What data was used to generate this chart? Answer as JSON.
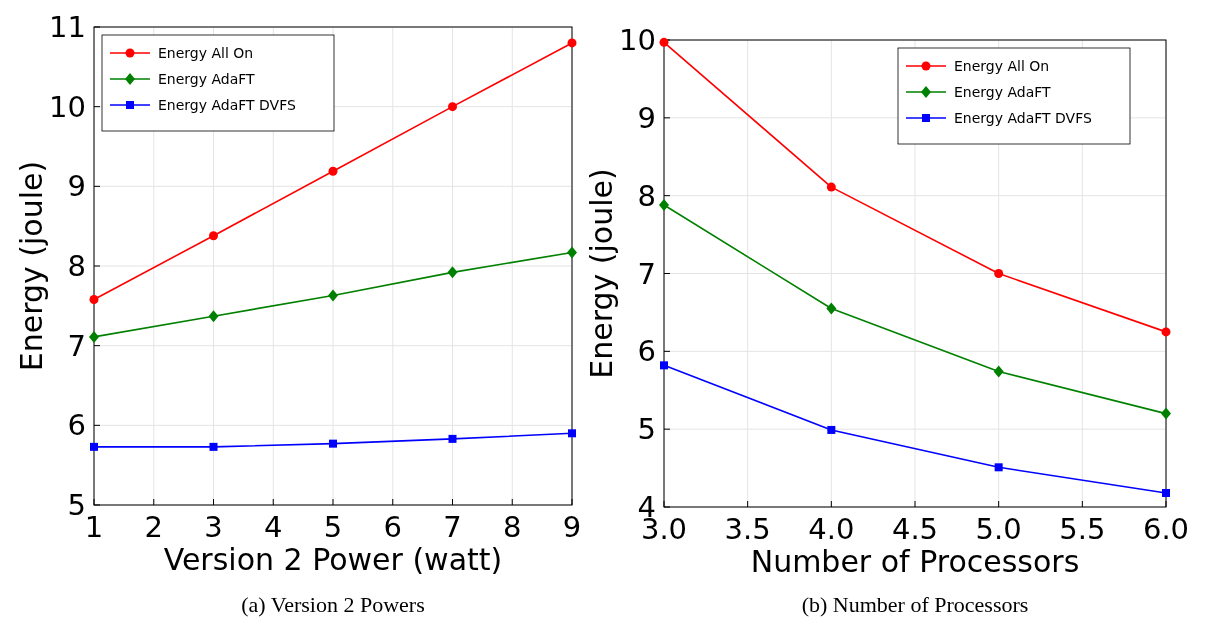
{
  "chart_data": [
    {
      "type": "line",
      "xlabel": "Version 2 Power (watt)",
      "ylabel": "Energy (joule)",
      "x": [
        1,
        3,
        5,
        7,
        9
      ],
      "xlim": [
        1,
        9
      ],
      "xticks": [
        1,
        2,
        3,
        4,
        5,
        6,
        7,
        8,
        9
      ],
      "ylim": [
        5,
        11
      ],
      "yticks": [
        5,
        6,
        7,
        8,
        9,
        10,
        11
      ],
      "grid": true,
      "legend": "top left",
      "annotations": [
        "(a) Version 2 Powers"
      ],
      "series": [
        {
          "name": "Energy All On",
          "color": "#ff0000",
          "marker": "circle",
          "values": [
            7.58,
            8.38,
            9.19,
            10.0,
            10.8
          ]
        },
        {
          "name": "Energy AdaFT",
          "color": "#008000",
          "marker": "diamond",
          "values": [
            7.11,
            7.37,
            7.63,
            7.92,
            8.17
          ]
        },
        {
          "name": "Energy AdaFT DVFS",
          "color": "#0000ff",
          "marker": "square",
          "values": [
            5.73,
            5.73,
            5.77,
            5.83,
            5.9
          ]
        }
      ]
    },
    {
      "type": "line",
      "xlabel": "Number of Processors",
      "ylabel": "Energy (joule)",
      "x": [
        3,
        4,
        5,
        6
      ],
      "xlim": [
        3,
        6
      ],
      "xticks": [
        {
          "value": 3,
          "label": "3.0"
        },
        {
          "value": 3.5,
          "label": "3.5"
        },
        {
          "value": 4,
          "label": "4.0"
        },
        {
          "value": 4.5,
          "label": "4.5"
        },
        {
          "value": 5,
          "label": "5.0"
        },
        {
          "value": 5.5,
          "label": "5.5"
        },
        {
          "value": 6,
          "label": "6.0"
        }
      ],
      "ylim": [
        4,
        10
      ],
      "yticks": [
        4,
        5,
        6,
        7,
        8,
        9,
        10
      ],
      "grid": true,
      "legend": "top right",
      "annotations": [
        "(b) Number of Processors"
      ],
      "series": [
        {
          "name": "Energy All On",
          "color": "#ff0000",
          "marker": "circle",
          "values": [
            9.97,
            8.11,
            7.0,
            6.25
          ]
        },
        {
          "name": "Energy AdaFT",
          "color": "#008000",
          "marker": "diamond",
          "values": [
            7.88,
            6.55,
            5.74,
            5.2
          ]
        },
        {
          "name": "Energy AdaFT DVFS",
          "color": "#0000ff",
          "marker": "square",
          "values": [
            5.82,
            4.99,
            4.51,
            4.18
          ]
        }
      ]
    }
  ]
}
